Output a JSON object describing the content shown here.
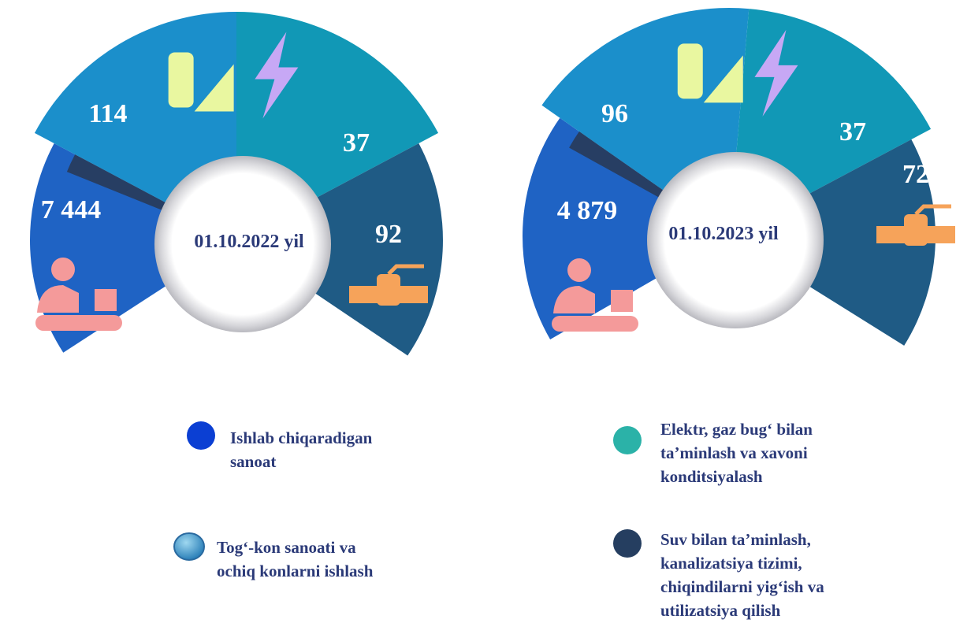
{
  "panels": [
    {
      "date": "01.10.2022 yil",
      "values": [
        "7 444",
        "114",
        "37",
        "92"
      ]
    },
    {
      "date": "01.10.2023 yil",
      "values": [
        "4 879",
        "96",
        "37",
        "72"
      ]
    }
  ],
  "legend": [
    {
      "lines": [
        "Ishlab chiqaradigan",
        " sanoat"
      ]
    },
    {
      "lines": [
        "Tog‘-kon sanoati va",
        "ochiq konlarni ishlash"
      ]
    },
    {
      "lines": [
        "Elektr, gaz bug‘ bilan",
        "ta’minlash va xavoni",
        "konditsiyalash"
      ]
    },
    {
      "lines": [
        "Suv bilan ta’minlash,",
        "kanalizatsiya tizimi,",
        "chiqindilarni yig‘ish va",
        "utilizatsiya qilish"
      ]
    }
  ]
}
